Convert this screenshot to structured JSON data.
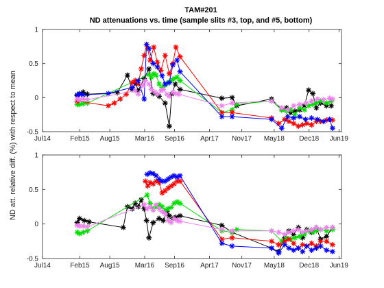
{
  "title": {
    "line1": "TAM#201",
    "line2": "ND attenuations vs. time (sample slits #3, top, and #5, bottom)"
  },
  "ylabel": "ND att. relative diff. (%) with respect to mean",
  "chart_data": [
    {
      "type": "line",
      "name": "top",
      "xlim": [
        2014.5,
        2019.5
      ],
      "ylim": [
        -0.5,
        1
      ],
      "yticks": [
        -0.5,
        0,
        0.5,
        1
      ],
      "ytick_labels": [
        "-0.5",
        "0",
        "0.5",
        "1"
      ],
      "xticks": [
        2014.5,
        2015.125,
        2015.625,
        2016.208,
        2016.708,
        2017.292,
        2017.833,
        2018.375,
        2018.958,
        2019.458
      ],
      "xtick_labels": [
        "Jul14",
        "Feb15",
        "Aug15",
        "Mar16",
        "Sep16",
        "Apr17",
        "Nov17",
        "May18",
        "Dec18",
        "Jun19"
      ],
      "series": [
        {
          "name": "black",
          "color": "#000000",
          "x": [
            2015.08,
            2015.12,
            2015.18,
            2015.25,
            2015.75,
            2015.92,
            2016.0,
            2016.06,
            2016.1,
            2016.2,
            2016.28,
            2016.35,
            2016.45,
            2016.55,
            2016.62,
            2016.66,
            2016.72,
            2016.8,
            2017.5,
            2017.67,
            2017.75,
            2018.33,
            2018.5,
            2018.58,
            2018.65,
            2018.72,
            2018.8,
            2018.88,
            2018.95,
            2019.02,
            2019.08,
            2019.15,
            2019.25,
            2019.33
          ],
          "y": [
            0.03,
            0.06,
            0.08,
            0.05,
            0.07,
            0.33,
            0.12,
            0.21,
            0.1,
            0.28,
            0.42,
            0.06,
            0.02,
            -0.08,
            -0.42,
            0.05,
            0.2,
            0.12,
            -0.01,
            0.0,
            -0.12,
            -0.02,
            -0.18,
            -0.15,
            -0.22,
            -0.2,
            -0.18,
            -0.12,
            0.11,
            0.06,
            -0.15,
            -0.08,
            -0.12,
            -0.12
          ]
        },
        {
          "name": "green",
          "color": "#00dd00",
          "x": [
            2015.08,
            2015.12,
            2015.18,
            2015.25,
            2016.28,
            2016.32,
            2016.36,
            2016.4,
            2016.45,
            2016.5,
            2016.55,
            2016.6,
            2016.65,
            2016.7,
            2016.75,
            2016.8,
            2017.5,
            2017.67,
            2017.75,
            2018.33,
            2018.5,
            2018.58,
            2018.65,
            2018.72,
            2018.8,
            2018.88,
            2018.95,
            2019.02,
            2019.08,
            2019.15,
            2019.25,
            2019.33
          ],
          "y": [
            -0.1,
            -0.1,
            -0.09,
            -0.08,
            0.34,
            0.3,
            0.35,
            0.33,
            0.2,
            0.15,
            0.18,
            0.22,
            0.25,
            0.28,
            0.3,
            0.25,
            -0.22,
            -0.18,
            -0.1,
            -0.05,
            -0.18,
            -0.2,
            -0.18,
            -0.25,
            -0.15,
            -0.18,
            -0.12,
            -0.1,
            -0.08,
            -0.05,
            -0.08,
            -0.05
          ]
        },
        {
          "name": "red",
          "color": "#ff0000",
          "x": [
            2015.08,
            2015.6,
            2015.7,
            2015.8,
            2015.9,
            2016.0,
            2016.05,
            2016.1,
            2016.15,
            2016.2,
            2016.24,
            2016.3,
            2016.36,
            2016.42,
            2016.48,
            2016.55,
            2016.62,
            2016.68,
            2016.73,
            2016.8,
            2017.5,
            2017.67,
            2018.33,
            2018.45,
            2018.55,
            2018.62,
            2018.7,
            2018.78,
            2018.85,
            2018.92,
            2019.0,
            2019.08,
            2019.15,
            2019.25,
            2019.35
          ],
          "y": [
            -0.05,
            -0.12,
            -0.08,
            -0.02,
            0.05,
            0.22,
            0.25,
            0.2,
            0.42,
            0.62,
            0.78,
            0.55,
            0.74,
            0.52,
            0.4,
            0.62,
            0.35,
            0.5,
            0.74,
            0.6,
            -0.22,
            -0.22,
            -0.3,
            -0.38,
            -0.32,
            -0.35,
            -0.38,
            -0.42,
            -0.4,
            -0.38,
            -0.4,
            -0.35,
            -0.35,
            -0.33,
            -0.33
          ]
        },
        {
          "name": "blue",
          "color": "#0000ff",
          "x": [
            2015.08,
            2015.12,
            2015.18,
            2015.6,
            2016.0,
            2016.1,
            2016.2,
            2016.24,
            2016.28,
            2016.35,
            2016.42,
            2016.5,
            2016.55,
            2016.62,
            2016.68,
            2016.75,
            2016.8,
            2017.5,
            2017.67,
            2018.33,
            2018.5,
            2018.6,
            2018.7,
            2018.8,
            2018.9,
            2019.0,
            2019.1,
            2019.2,
            2019.3,
            2019.35
          ],
          "y": [
            0.04,
            0.05,
            0.04,
            0.06,
            0.15,
            0.25,
            -0.02,
            0.78,
            0.72,
            0.5,
            0.45,
            0.32,
            0.2,
            0.22,
            0.48,
            0.55,
            0.38,
            -0.28,
            -0.28,
            -0.32,
            -0.45,
            -0.28,
            -0.3,
            -0.28,
            -0.32,
            -0.3,
            -0.32,
            -0.35,
            -0.32,
            -0.45
          ]
        },
        {
          "name": "violet",
          "color": "#ee82ee",
          "x": [
            2015.08,
            2015.12,
            2015.18,
            2015.25,
            2016.05,
            2016.1,
            2016.18,
            2016.22,
            2016.28,
            2016.32,
            2016.38,
            2016.42,
            2016.48,
            2016.52,
            2016.58,
            2016.62,
            2016.68,
            2016.72,
            2016.78,
            2017.5,
            2017.67,
            2018.33,
            2018.5,
            2018.6,
            2018.7,
            2018.8,
            2018.9,
            2019.0,
            2019.1,
            2019.2,
            2019.3,
            2019.35
          ],
          "y": [
            -0.02,
            -0.03,
            -0.02,
            -0.03,
            0.1,
            0.05,
            0.18,
            0.25,
            0.2,
            0.12,
            0.08,
            0.05,
            0.1,
            0.12,
            0.05,
            0.02,
            0.08,
            0.06,
            0.05,
            -0.12,
            -0.08,
            -0.05,
            -0.15,
            -0.18,
            -0.12,
            -0.1,
            -0.08,
            -0.05,
            -0.02,
            -0.03,
            -0.01,
            -0.02
          ]
        }
      ]
    },
    {
      "type": "line",
      "name": "bottom",
      "xlim": [
        2014.5,
        2019.5
      ],
      "ylim": [
        -0.5,
        1
      ],
      "yticks": [
        -0.5,
        0,
        0.5,
        1
      ],
      "ytick_labels": [
        "-0.5",
        "0",
        "0.5",
        "1"
      ],
      "xticks": [
        2014.5,
        2015.125,
        2015.625,
        2016.208,
        2016.708,
        2017.292,
        2017.833,
        2018.375,
        2018.958,
        2019.458
      ],
      "xtick_labels": [
        "Jul14",
        "Feb15",
        "Aug15",
        "Mar16",
        "Sep16",
        "Apr17",
        "Nov17",
        "May18",
        "Dec18",
        "Jun19"
      ],
      "series": [
        {
          "name": "black",
          "color": "#000000",
          "x": [
            2015.08,
            2015.12,
            2015.2,
            2015.28,
            2015.85,
            2015.92,
            2016.0,
            2016.05,
            2016.1,
            2016.15,
            2016.2,
            2016.24,
            2016.28,
            2016.35,
            2016.45,
            2016.52,
            2016.58,
            2016.62,
            2016.68,
            2016.73,
            2016.8,
            2017.5,
            2017.67,
            2018.33,
            2018.45,
            2018.55,
            2018.62,
            2018.7,
            2018.78,
            2018.85,
            2018.92,
            2019.0,
            2019.08,
            2019.15,
            2019.25,
            2019.35
          ],
          "y": [
            0.02,
            0.08,
            0.05,
            0.03,
            -0.05,
            0.25,
            0.22,
            0.3,
            0.25,
            0.35,
            0.22,
            0.05,
            -0.2,
            0.02,
            0.08,
            0.05,
            0.18,
            0.12,
            0.08,
            0.1,
            0.12,
            -0.02,
            -0.12,
            -0.35,
            -0.4,
            -0.2,
            -0.1,
            -0.15,
            -0.05,
            -0.2,
            -0.08,
            -0.12,
            -0.05,
            -0.22,
            -0.18,
            -0.05
          ]
        },
        {
          "name": "green",
          "color": "#00dd00",
          "x": [
            2015.08,
            2015.12,
            2015.18,
            2015.25,
            2016.25,
            2016.3,
            2016.35,
            2016.4,
            2016.45,
            2016.5,
            2016.55,
            2016.6,
            2016.65,
            2016.7,
            2016.75,
            2016.8,
            2017.5,
            2017.67,
            2017.75,
            2018.33,
            2018.5,
            2018.58,
            2018.65,
            2018.72,
            2018.8,
            2018.88,
            2018.95,
            2019.02,
            2019.08,
            2019.15,
            2019.25,
            2019.35
          ],
          "y": [
            -0.12,
            -0.14,
            -0.12,
            -0.1,
            0.42,
            0.3,
            0.22,
            0.25,
            0.28,
            0.25,
            0.2,
            0.22,
            0.24,
            0.3,
            0.32,
            0.3,
            -0.1,
            -0.12,
            -0.08,
            -0.1,
            -0.25,
            -0.2,
            -0.22,
            -0.2,
            -0.18,
            -0.15,
            -0.1,
            -0.12,
            -0.1,
            -0.08,
            -0.1,
            -0.08
          ]
        },
        {
          "name": "red",
          "color": "#ff0000",
          "x": [
            2016.22,
            2016.26,
            2016.3,
            2016.35,
            2016.4,
            2016.45,
            2016.5,
            2016.55,
            2016.6,
            2016.65,
            2016.7,
            2016.75,
            2016.8,
            2017.5,
            2017.67,
            2018.33,
            2018.45,
            2018.55,
            2018.62,
            2018.7,
            2018.78,
            2018.85,
            2018.92,
            2019.0,
            2019.08,
            2019.15,
            2019.25,
            2019.35
          ],
          "y": [
            0.62,
            0.55,
            0.6,
            0.58,
            0.62,
            0.6,
            0.45,
            0.48,
            0.52,
            0.55,
            0.58,
            0.62,
            0.62,
            -0.22,
            -0.2,
            -0.25,
            -0.3,
            -0.25,
            -0.22,
            -0.28,
            -0.35,
            -0.3,
            -0.32,
            -0.28,
            -0.32,
            -0.25,
            -0.25,
            -0.3
          ]
        },
        {
          "name": "blue",
          "color": "#0000ff",
          "x": [
            2016.25,
            2016.3,
            2016.35,
            2016.4,
            2016.45,
            2016.5,
            2016.55,
            2016.6,
            2016.65,
            2016.7,
            2016.75,
            2016.8,
            2017.5,
            2017.67,
            2018.33,
            2018.45,
            2018.55,
            2018.62,
            2018.7,
            2018.78,
            2018.85,
            2018.92,
            2019.0,
            2019.08,
            2019.15,
            2019.25,
            2019.35
          ],
          "y": [
            0.72,
            0.74,
            0.73,
            0.7,
            0.65,
            0.62,
            0.62,
            0.65,
            0.68,
            0.7,
            0.68,
            0.7,
            -0.28,
            -0.32,
            -0.35,
            -0.42,
            -0.3,
            -0.35,
            -0.38,
            -0.35,
            -0.4,
            -0.32,
            -0.38,
            -0.35,
            -0.32,
            -0.38,
            -0.4
          ]
        },
        {
          "name": "violet",
          "color": "#ee82ee",
          "x": [
            2015.08,
            2015.12,
            2015.18,
            2015.25,
            2016.2,
            2016.25,
            2016.3,
            2016.35,
            2016.4,
            2016.45,
            2016.5,
            2016.55,
            2016.6,
            2016.65,
            2016.7,
            2016.75,
            2016.8,
            2017.5,
            2017.67,
            2018.33,
            2018.45,
            2018.55,
            2018.62,
            2018.7,
            2018.78,
            2018.85,
            2018.92,
            2019.0,
            2019.08,
            2019.15,
            2019.25,
            2019.35
          ],
          "y": [
            -0.02,
            -0.03,
            -0.03,
            -0.04,
            0.28,
            0.22,
            0.25,
            0.2,
            0.28,
            0.22,
            0.18,
            0.15,
            0.05,
            0.02,
            0.08,
            0.05,
            0.04,
            -0.08,
            -0.1,
            -0.1,
            -0.12,
            -0.15,
            -0.12,
            -0.1,
            -0.08,
            -0.12,
            -0.1,
            -0.08,
            -0.05,
            -0.08,
            -0.05,
            -0.05
          ]
        }
      ]
    }
  ]
}
